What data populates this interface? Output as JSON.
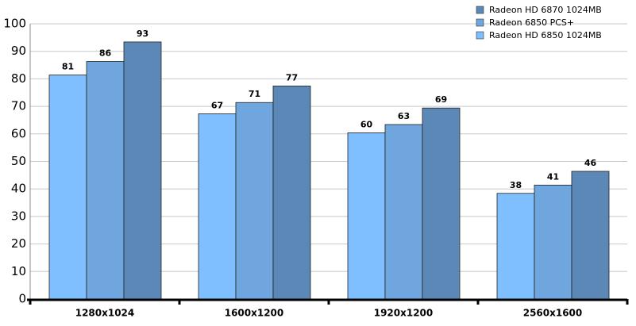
{
  "chart_data": {
    "type": "bar",
    "categories": [
      "1280x1024",
      "1600x1200",
      "1920x1200",
      "2560x1600"
    ],
    "series": [
      {
        "name": "Radeon HD 6850 1024MB",
        "color": "#80bfff",
        "values": [
          81.4,
          67.3,
          60.4,
          38.4
        ],
        "value_labels": [
          "81",
          "67",
          "60",
          "38"
        ]
      },
      {
        "name": "Radeon 6850 PCS+",
        "color": "#6fa6de",
        "values": [
          86.3,
          71.4,
          63.4,
          41.4
        ],
        "value_labels": [
          "86",
          "71",
          "63",
          "41"
        ]
      },
      {
        "name": "Radeon HD 6870 1024MB",
        "color": "#5b88b6",
        "values": [
          93.4,
          77.4,
          69.4,
          46.4
        ],
        "value_labels": [
          "93",
          "77",
          "69",
          "46"
        ]
      }
    ],
    "ylim": [
      0,
      100
    ],
    "yticks": [
      0,
      10,
      20,
      30,
      40,
      50,
      60,
      70,
      80,
      90,
      100
    ],
    "grid": true,
    "legend": "top-right"
  }
}
